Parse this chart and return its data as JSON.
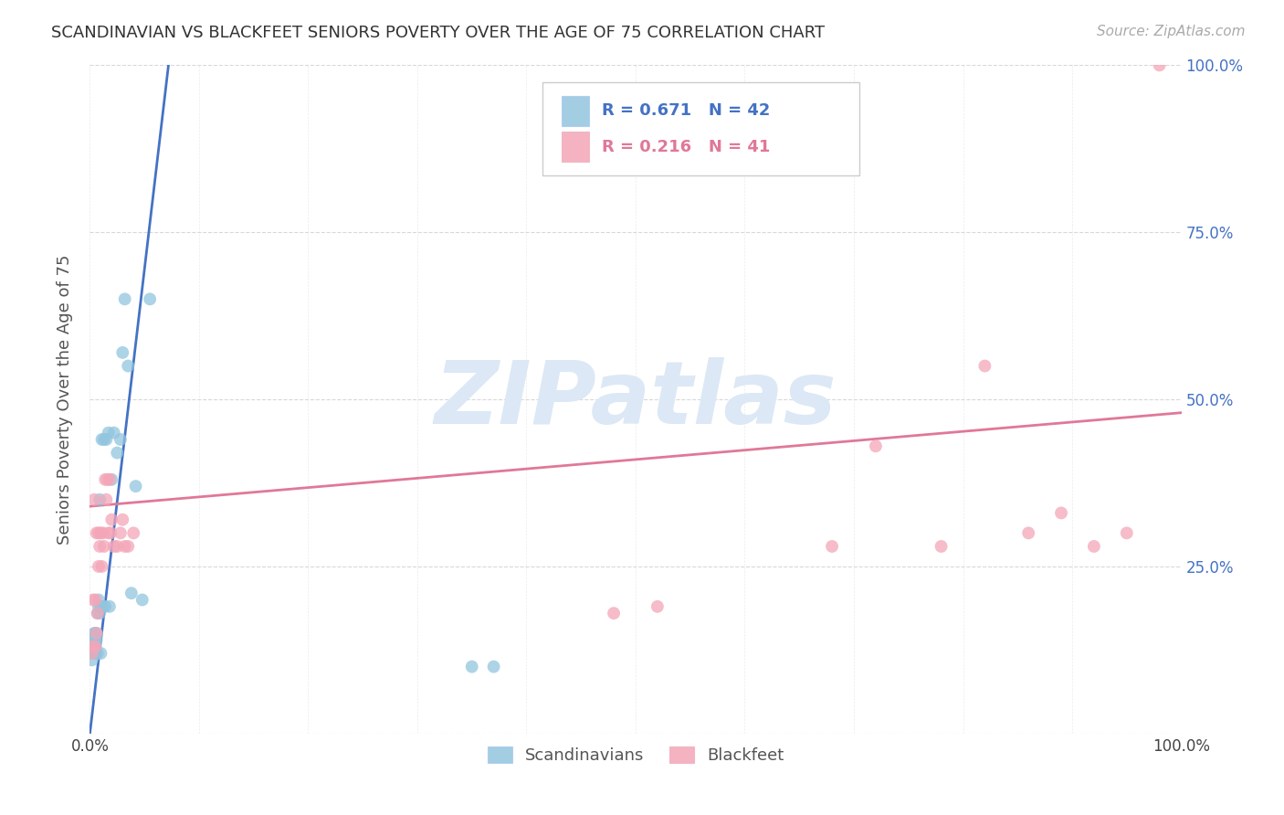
{
  "title": "SCANDINAVIAN VS BLACKFEET SENIORS POVERTY OVER THE AGE OF 75 CORRELATION CHART",
  "source": "Source: ZipAtlas.com",
  "ylabel": "Seniors Poverty Over the Age of 75",
  "background_color": "#ffffff",
  "color_scandinavian": "#92c5de",
  "color_blackfeet": "#f4a6b8",
  "scand_line_color": "#4472c4",
  "black_line_color": "#e07898",
  "legend_r1": "R = 0.671",
  "legend_n1": "N = 42",
  "legend_r2": "R = 0.216",
  "legend_n2": "N = 41",
  "scandinavian_x": [
    0.002,
    0.002,
    0.003,
    0.003,
    0.003,
    0.004,
    0.004,
    0.004,
    0.005,
    0.005,
    0.005,
    0.005,
    0.006,
    0.006,
    0.007,
    0.007,
    0.008,
    0.008,
    0.009,
    0.009,
    0.01,
    0.01,
    0.011,
    0.012,
    0.013,
    0.014,
    0.015,
    0.017,
    0.018,
    0.02,
    0.022,
    0.025,
    0.028,
    0.03,
    0.032,
    0.035,
    0.038,
    0.042,
    0.048,
    0.055,
    0.35,
    0.37
  ],
  "scandinavian_y": [
    0.12,
    0.11,
    0.13,
    0.12,
    0.14,
    0.13,
    0.15,
    0.14,
    0.12,
    0.13,
    0.15,
    0.14,
    0.14,
    0.15,
    0.18,
    0.12,
    0.19,
    0.2,
    0.18,
    0.35,
    0.12,
    0.19,
    0.44,
    0.19,
    0.44,
    0.19,
    0.44,
    0.45,
    0.19,
    0.38,
    0.45,
    0.42,
    0.44,
    0.57,
    0.65,
    0.55,
    0.21,
    0.37,
    0.2,
    0.65,
    0.1,
    0.1
  ],
  "blackfeet_x": [
    0.002,
    0.003,
    0.003,
    0.004,
    0.005,
    0.005,
    0.006,
    0.006,
    0.007,
    0.008,
    0.008,
    0.009,
    0.01,
    0.011,
    0.012,
    0.013,
    0.014,
    0.015,
    0.016,
    0.017,
    0.018,
    0.019,
    0.02,
    0.022,
    0.025,
    0.028,
    0.03,
    0.032,
    0.035,
    0.04,
    0.48,
    0.52,
    0.68,
    0.72,
    0.78,
    0.82,
    0.86,
    0.89,
    0.92,
    0.95,
    0.98
  ],
  "blackfeet_y": [
    0.12,
    0.2,
    0.13,
    0.35,
    0.2,
    0.13,
    0.15,
    0.3,
    0.18,
    0.25,
    0.3,
    0.28,
    0.3,
    0.25,
    0.3,
    0.28,
    0.38,
    0.35,
    0.38,
    0.3,
    0.38,
    0.3,
    0.32,
    0.28,
    0.28,
    0.3,
    0.32,
    0.28,
    0.28,
    0.3,
    0.18,
    0.19,
    0.28,
    0.43,
    0.28,
    0.55,
    0.3,
    0.33,
    0.28,
    0.3,
    1.0
  ],
  "scand_line_x": [
    0.0,
    0.072
  ],
  "scand_line_y": [
    0.0,
    1.0
  ],
  "black_line_x": [
    0.0,
    1.0
  ],
  "black_line_y": [
    0.34,
    0.48
  ],
  "xlim": [
    0.0,
    1.0
  ],
  "ylim": [
    0.0,
    1.0
  ],
  "yticks": [
    0.0,
    0.25,
    0.5,
    0.75,
    1.0
  ],
  "ytick_labels": [
    "",
    "25.0%",
    "50.0%",
    "75.0%",
    "100.0%"
  ],
  "xticks": [
    0.0,
    0.1,
    0.2,
    0.3,
    0.4,
    0.5,
    0.6,
    0.7,
    0.8,
    0.9,
    1.0
  ],
  "xtick_labels": [
    "0.0%",
    "",
    "",
    "",
    "",
    "",
    "",
    "",
    "",
    "",
    "100.0%"
  ],
  "grid_color": "#d8d8d8",
  "watermark_text": "ZIPatlas",
  "watermark_color": "#dce8f5"
}
